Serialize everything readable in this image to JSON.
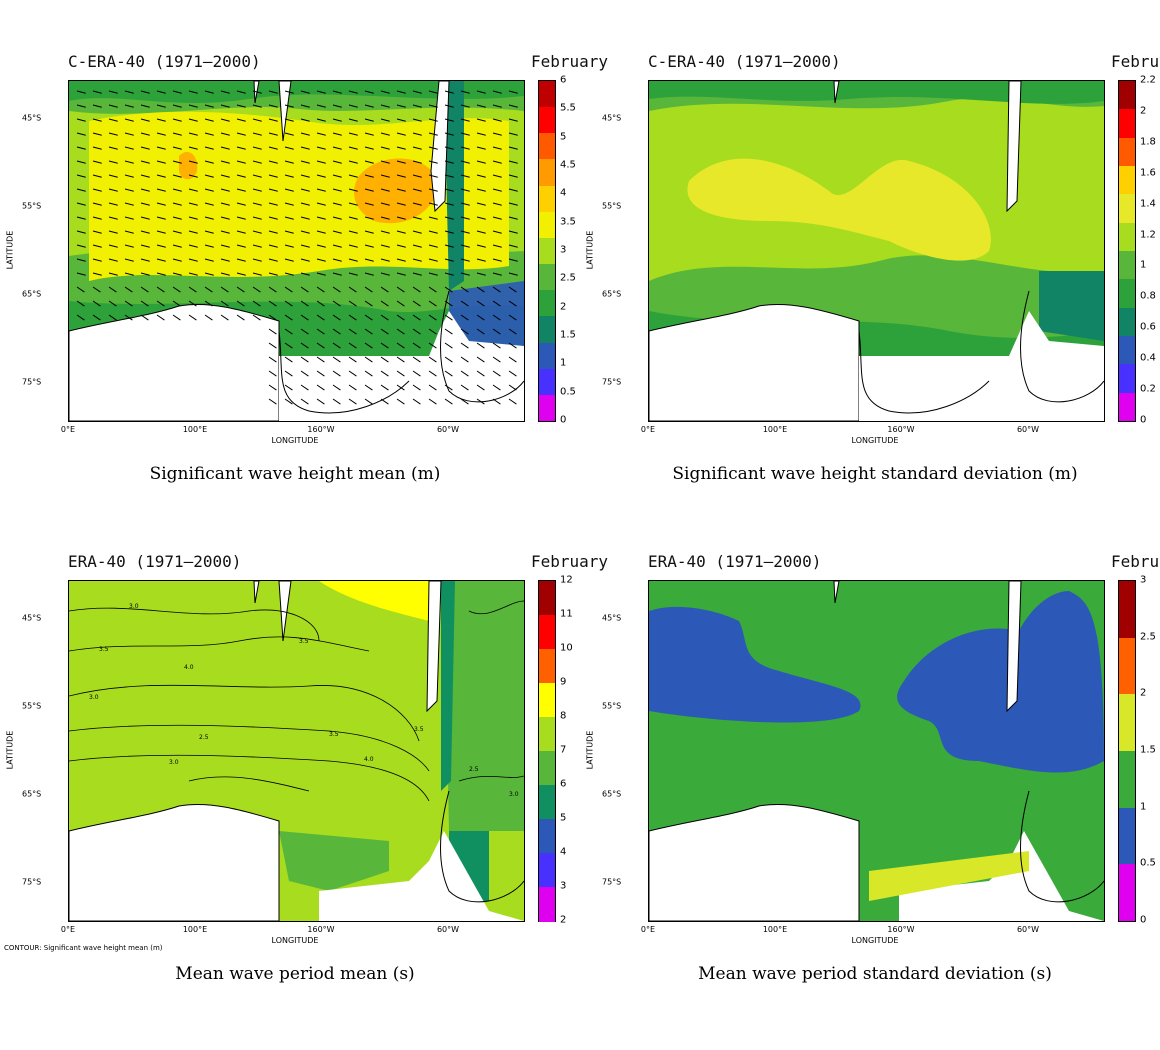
{
  "colors": {
    "land": "#ffffff",
    "coast": "#000000"
  },
  "axes": {
    "lat_ticks": [
      "45°S",
      "55°S",
      "65°S",
      "75°S"
    ],
    "lon_ticks": [
      "0°E",
      "100°E",
      "160°W",
      "60°W"
    ],
    "xlabel": "LONGITUDE",
    "ylabel": "LATITUDE"
  },
  "panels": [
    {
      "dataset": "C-ERA-40 (1971–2000)",
      "month": "February",
      "caption": "Significant wave height mean (m)",
      "colorbar": {
        "labels": [
          "6",
          "5.5",
          "5",
          "4.5",
          "4",
          "3.5",
          "3",
          "2.5",
          "2",
          "1.5",
          "1",
          "0.5",
          "0"
        ],
        "colors": [
          "#c00000",
          "#ff0000",
          "#ff5a00",
          "#ff9b00",
          "#ffd000",
          "#f0f000",
          "#a8dc1e",
          "#58b63a",
          "#2ea23a",
          "#108464",
          "#2c58b8",
          "#4830ff",
          "#e000f0"
        ]
      },
      "vectors": true
    },
    {
      "dataset": "C-ERA-40 (1971–2000)",
      "month": "February",
      "caption": "Significant wave height standard deviation (m)",
      "colorbar": {
        "labels": [
          "2.2",
          "2",
          "1.8",
          "1.6",
          "1.4",
          "1.2",
          "1",
          "0.8",
          "0.6",
          "0.4",
          "0.2",
          "0"
        ],
        "colors": [
          "#a00000",
          "#ff0000",
          "#ff5a00",
          "#ffd000",
          "#e8e82a",
          "#a8dc1e",
          "#58b63a",
          "#2ea23a",
          "#108464",
          "#2c58b8",
          "#4830ff",
          "#e000f0"
        ]
      }
    },
    {
      "dataset": "ERA-40 (1971–2000)",
      "month": "February",
      "caption": "Mean wave period mean (s)",
      "contour_note": "CONTOUR: Significant wave height mean (m)",
      "contour_labels": [
        "3.0",
        "3.5",
        "4.0",
        "3.5",
        "3.0",
        "2.5",
        "3.0",
        "3.5",
        "4.0",
        "3.5",
        "2.5",
        "3.0"
      ],
      "colorbar": {
        "labels": [
          "12",
          "11",
          "10",
          "9",
          "8",
          "7",
          "6",
          "5",
          "4",
          "3",
          "2"
        ],
        "colors": [
          "#a00000",
          "#ff0000",
          "#ff6000",
          "#ffff00",
          "#a8dc1e",
          "#58b63a",
          "#109060",
          "#2c58b8",
          "#4830ff",
          "#e000f0"
        ]
      }
    },
    {
      "dataset": "ERA-40 (1971–2000)",
      "month": "February",
      "caption": "Mean wave period standard deviation (s)",
      "colorbar": {
        "labels": [
          "3",
          "2.5",
          "2",
          "1.5",
          "1",
          "0.5",
          "0"
        ],
        "colors": [
          "#a00000",
          "#ff6000",
          "#d8e828",
          "#3aaa3a",
          "#2c58b8",
          "#e000f0"
        ]
      }
    }
  ]
}
